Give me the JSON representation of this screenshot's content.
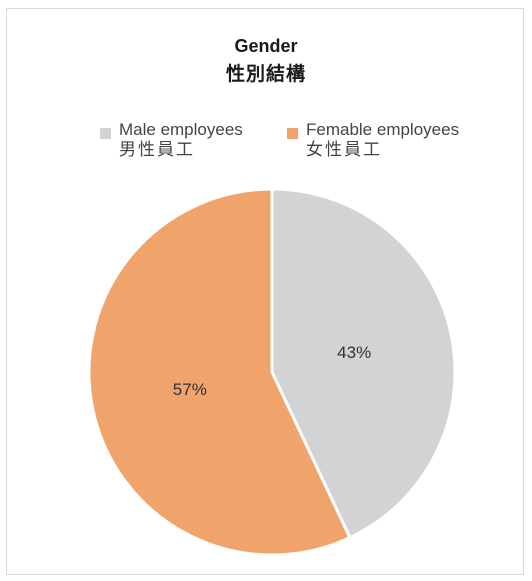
{
  "chart_data": {
    "type": "pie",
    "title": "Gender",
    "subtitle": "性別結構",
    "legend_position": "top",
    "slices": [
      {
        "label": "Male employees",
        "label_zh": "男性員工",
        "value": 43,
        "display": "43%",
        "color": "#d1d3d4"
      },
      {
        "label": "Femable employees",
        "label_zh": "女性員工",
        "value": 57,
        "display": "57%",
        "color": "#f0a46c"
      }
    ]
  }
}
